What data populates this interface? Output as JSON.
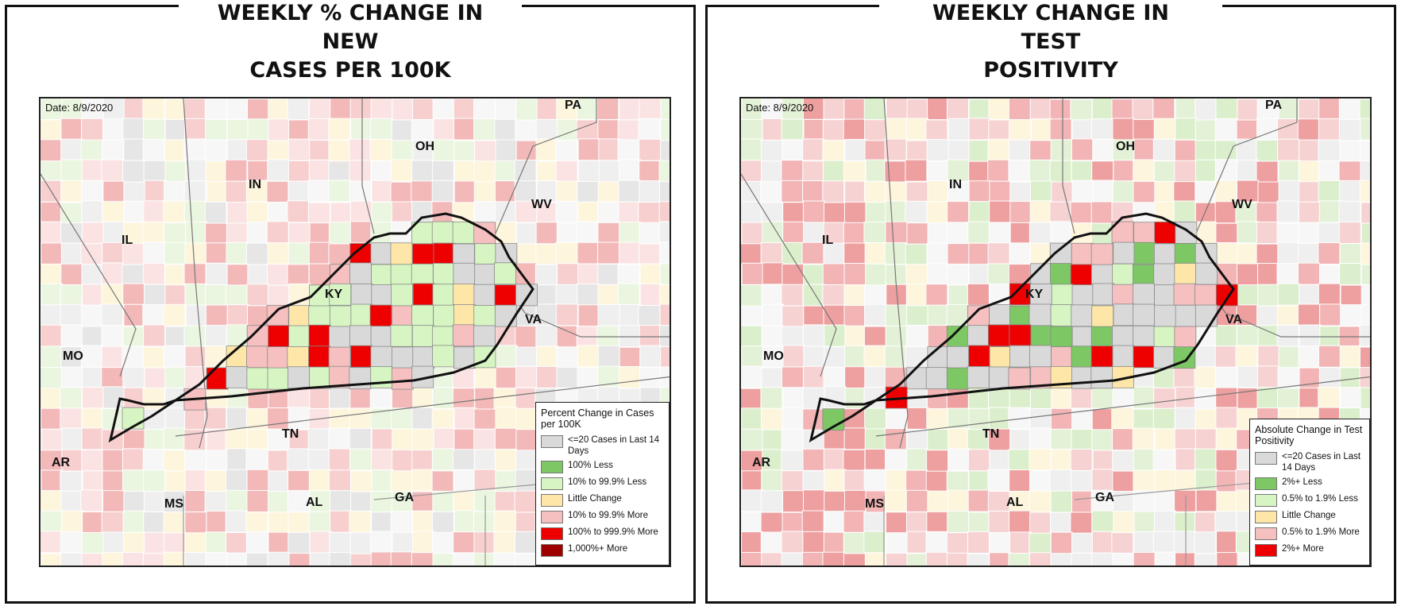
{
  "panels": [
    {
      "title": "WEEKLY % CHANGE IN NEW\nCASES PER 100K",
      "date_label": "Date: 8/9/2020",
      "state_labels": [
        "PA",
        "OH",
        "IN",
        "WV",
        "IL",
        "KY",
        "VA",
        "MO",
        "TN",
        "AR",
        "MS",
        "AL",
        "GA"
      ],
      "legend": {
        "title": "Percent Change in Cases per 100K",
        "items": [
          {
            "label": "<=20 Cases in Last 14 Days",
            "color": "#d9d9d9"
          },
          {
            "label": "100% Less",
            "color": "#7dc764"
          },
          {
            "label": "10% to 99.9% Less",
            "color": "#d6f5c2"
          },
          {
            "label": "Little Change",
            "color": "#fde6a8"
          },
          {
            "label": "10% to 99.9% More",
            "color": "#f6c0c0"
          },
          {
            "label": "100% to 999.9% More",
            "color": "#ee0000"
          },
          {
            "label": "1,000%+ More",
            "color": "#9e0000"
          }
        ]
      }
    },
    {
      "title": "WEEKLY CHANGE IN TEST\nPOSITIVITY",
      "date_label": "Date: 8/9/2020",
      "state_labels": [
        "PA",
        "OH",
        "IN",
        "WV",
        "IL",
        "KY",
        "VA",
        "MO",
        "TN",
        "AR",
        "MS",
        "AL",
        "GA"
      ],
      "legend": {
        "title": "Absolute Change in Test Positivity",
        "items": [
          {
            "label": "<=20 Cases in Last 14 Days",
            "color": "#d9d9d9"
          },
          {
            "label": "2%+ Less",
            "color": "#7dc764"
          },
          {
            "label": "0.5% to 1.9% Less",
            "color": "#d6f5c2"
          },
          {
            "label": "Little Change",
            "color": "#fde6a8"
          },
          {
            "label": "0.5% to 1.9% More",
            "color": "#f6c0c0"
          },
          {
            "label": "2%+ More",
            "color": "#ee0000"
          }
        ]
      }
    }
  ]
}
